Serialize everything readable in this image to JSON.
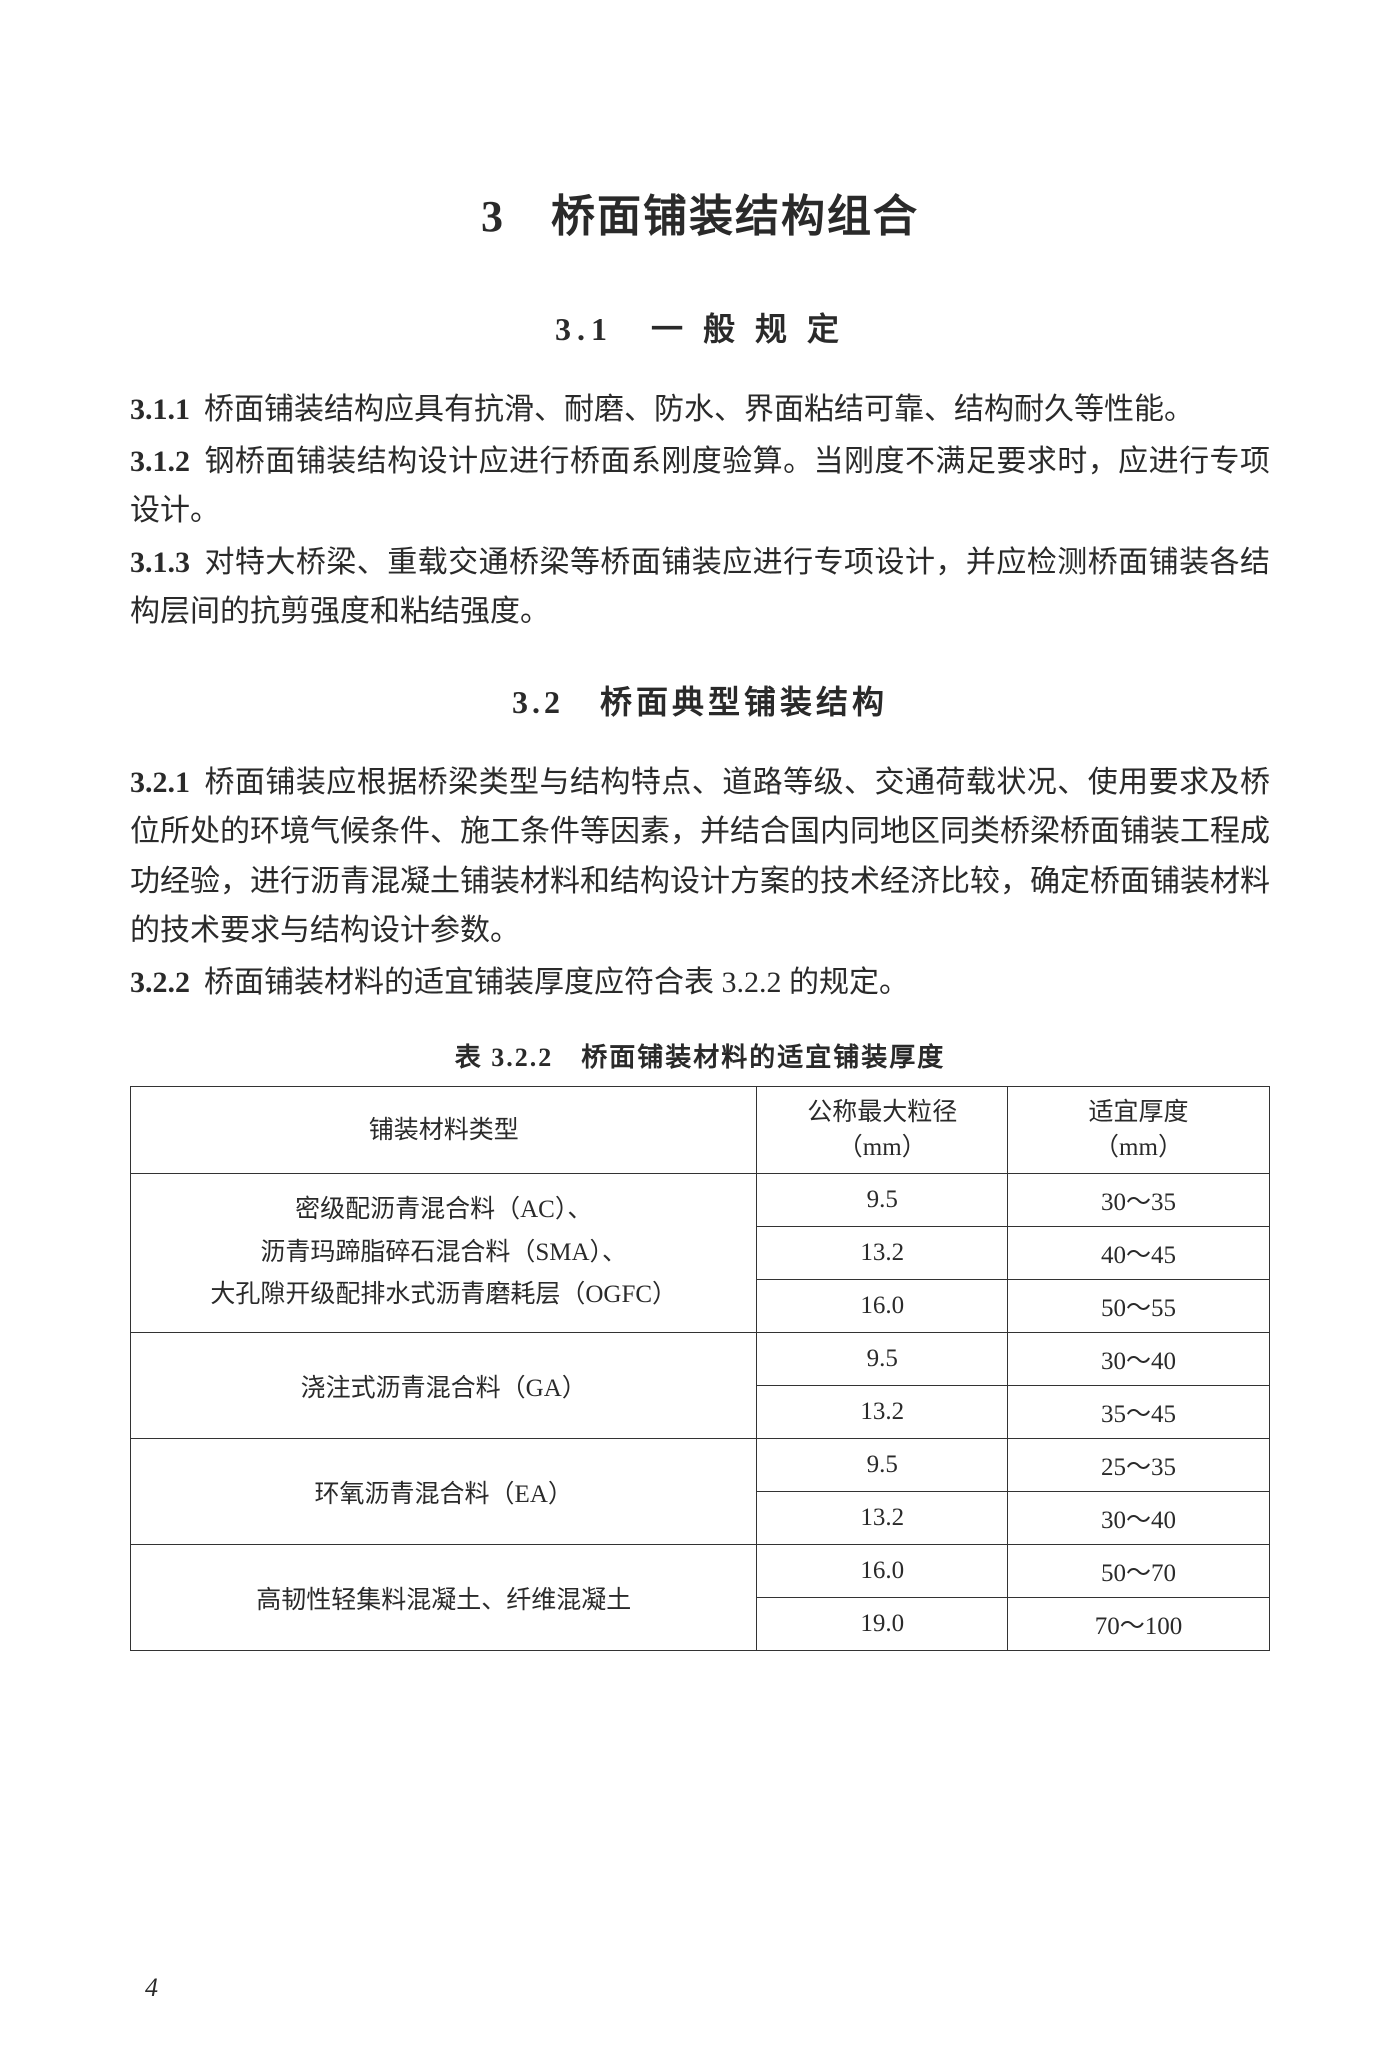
{
  "chapter": {
    "number": "3",
    "title": "桥面铺装结构组合"
  },
  "section1": {
    "number": "3.1",
    "title": "一 般 规 定"
  },
  "clauses1": [
    {
      "num": "3.1.1",
      "text": "桥面铺装结构应具有抗滑、耐磨、防水、界面粘结可靠、结构耐久等性能。"
    },
    {
      "num": "3.1.2",
      "text": "钢桥面铺装结构设计应进行桥面系刚度验算。当刚度不满足要求时，应进行专项设计。"
    },
    {
      "num": "3.1.3",
      "text": "对特大桥梁、重载交通桥梁等桥面铺装应进行专项设计，并应检测桥面铺装各结构层间的抗剪强度和粘结强度。"
    }
  ],
  "section2": {
    "number": "3.2",
    "title": "桥面典型铺装结构"
  },
  "clauses2": [
    {
      "num": "3.2.1",
      "text": "桥面铺装应根据桥梁类型与结构特点、道路等级、交通荷载状况、使用要求及桥位所处的环境气候条件、施工条件等因素，并结合国内同地区同类桥梁桥面铺装工程成功经验，进行沥青混凝土铺装材料和结构设计方案的技术经济比较，确定桥面铺装材料的技术要求与结构设计参数。"
    },
    {
      "num": "3.2.2",
      "text": "桥面铺装材料的适宜铺装厚度应符合表 3.2.2 的规定。"
    }
  ],
  "table": {
    "caption": "表 3.2.2　桥面铺装材料的适宜铺装厚度",
    "headers": {
      "material": "铺装材料类型",
      "size": "公称最大粒径",
      "size_unit": "（mm）",
      "thickness": "适宜厚度",
      "thickness_unit": "（mm）"
    },
    "rows": [
      {
        "material": "密级配沥青混合料（AC）、",
        "material2": "沥青玛蹄脂碎石混合料（SMA）、",
        "material3": "大孔隙开级配排水式沥青磨耗层（OGFC）",
        "specs": [
          {
            "size": "9.5",
            "thick": "30～35"
          },
          {
            "size": "13.2",
            "thick": "40～45"
          },
          {
            "size": "16.0",
            "thick": "50～55"
          }
        ]
      },
      {
        "material": "浇注式沥青混合料（GA）",
        "specs": [
          {
            "size": "9.5",
            "thick": "30～40"
          },
          {
            "size": "13.2",
            "thick": "35～45"
          }
        ]
      },
      {
        "material": "环氧沥青混合料（EA）",
        "specs": [
          {
            "size": "9.5",
            "thick": "25～35"
          },
          {
            "size": "13.2",
            "thick": "30～40"
          }
        ]
      },
      {
        "material": "高韧性轻集料混凝土、纤维混凝土",
        "specs": [
          {
            "size": "16.0",
            "thick": "50～70"
          },
          {
            "size": "19.0",
            "thick": "70～100"
          }
        ]
      }
    ]
  },
  "page_number": "4"
}
